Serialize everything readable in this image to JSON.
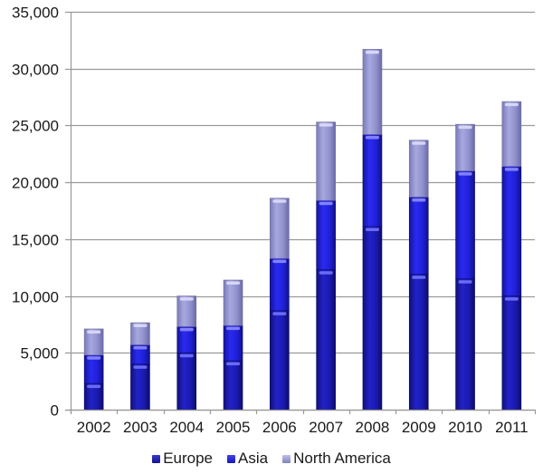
{
  "chart_data": {
    "type": "bar",
    "stacked": true,
    "title": "",
    "xlabel": "",
    "ylabel": "",
    "categories": [
      "2002",
      "2003",
      "2004",
      "2005",
      "2006",
      "2007",
      "2008",
      "2009",
      "2010",
      "2011"
    ],
    "series": [
      {
        "name": "Europe",
        "color": "#1a1ab8",
        "values": [
          2300,
          4000,
          5000,
          4300,
          8700,
          12300,
          16100,
          11900,
          11500,
          10000
        ]
      },
      {
        "name": "Asia",
        "color": "#2020e0",
        "values": [
          2500,
          1700,
          2300,
          3100,
          4600,
          6100,
          8100,
          6800,
          9500,
          11400
        ]
      },
      {
        "name": "North America",
        "color": "#9a9ad6",
        "values": [
          2300,
          1950,
          2700,
          4000,
          5300,
          6900,
          7500,
          5000,
          4100,
          5700
        ]
      }
    ],
    "ylim": [
      0,
      35000
    ],
    "yticks": [
      "0",
      "5,000",
      "10,000",
      "15,000",
      "20,000",
      "25,000",
      "30,000",
      "35,000"
    ],
    "ytick_values": [
      0,
      5000,
      10000,
      15000,
      20000,
      25000,
      30000,
      35000
    ],
    "grid": true,
    "legend_position": "bottom"
  },
  "legend": {
    "items": [
      {
        "label": "Europe",
        "color": "#1c1c9a"
      },
      {
        "label": "Asia",
        "color": "#2525d0"
      },
      {
        "label": "North America",
        "color": "#a0a0d8"
      }
    ]
  }
}
